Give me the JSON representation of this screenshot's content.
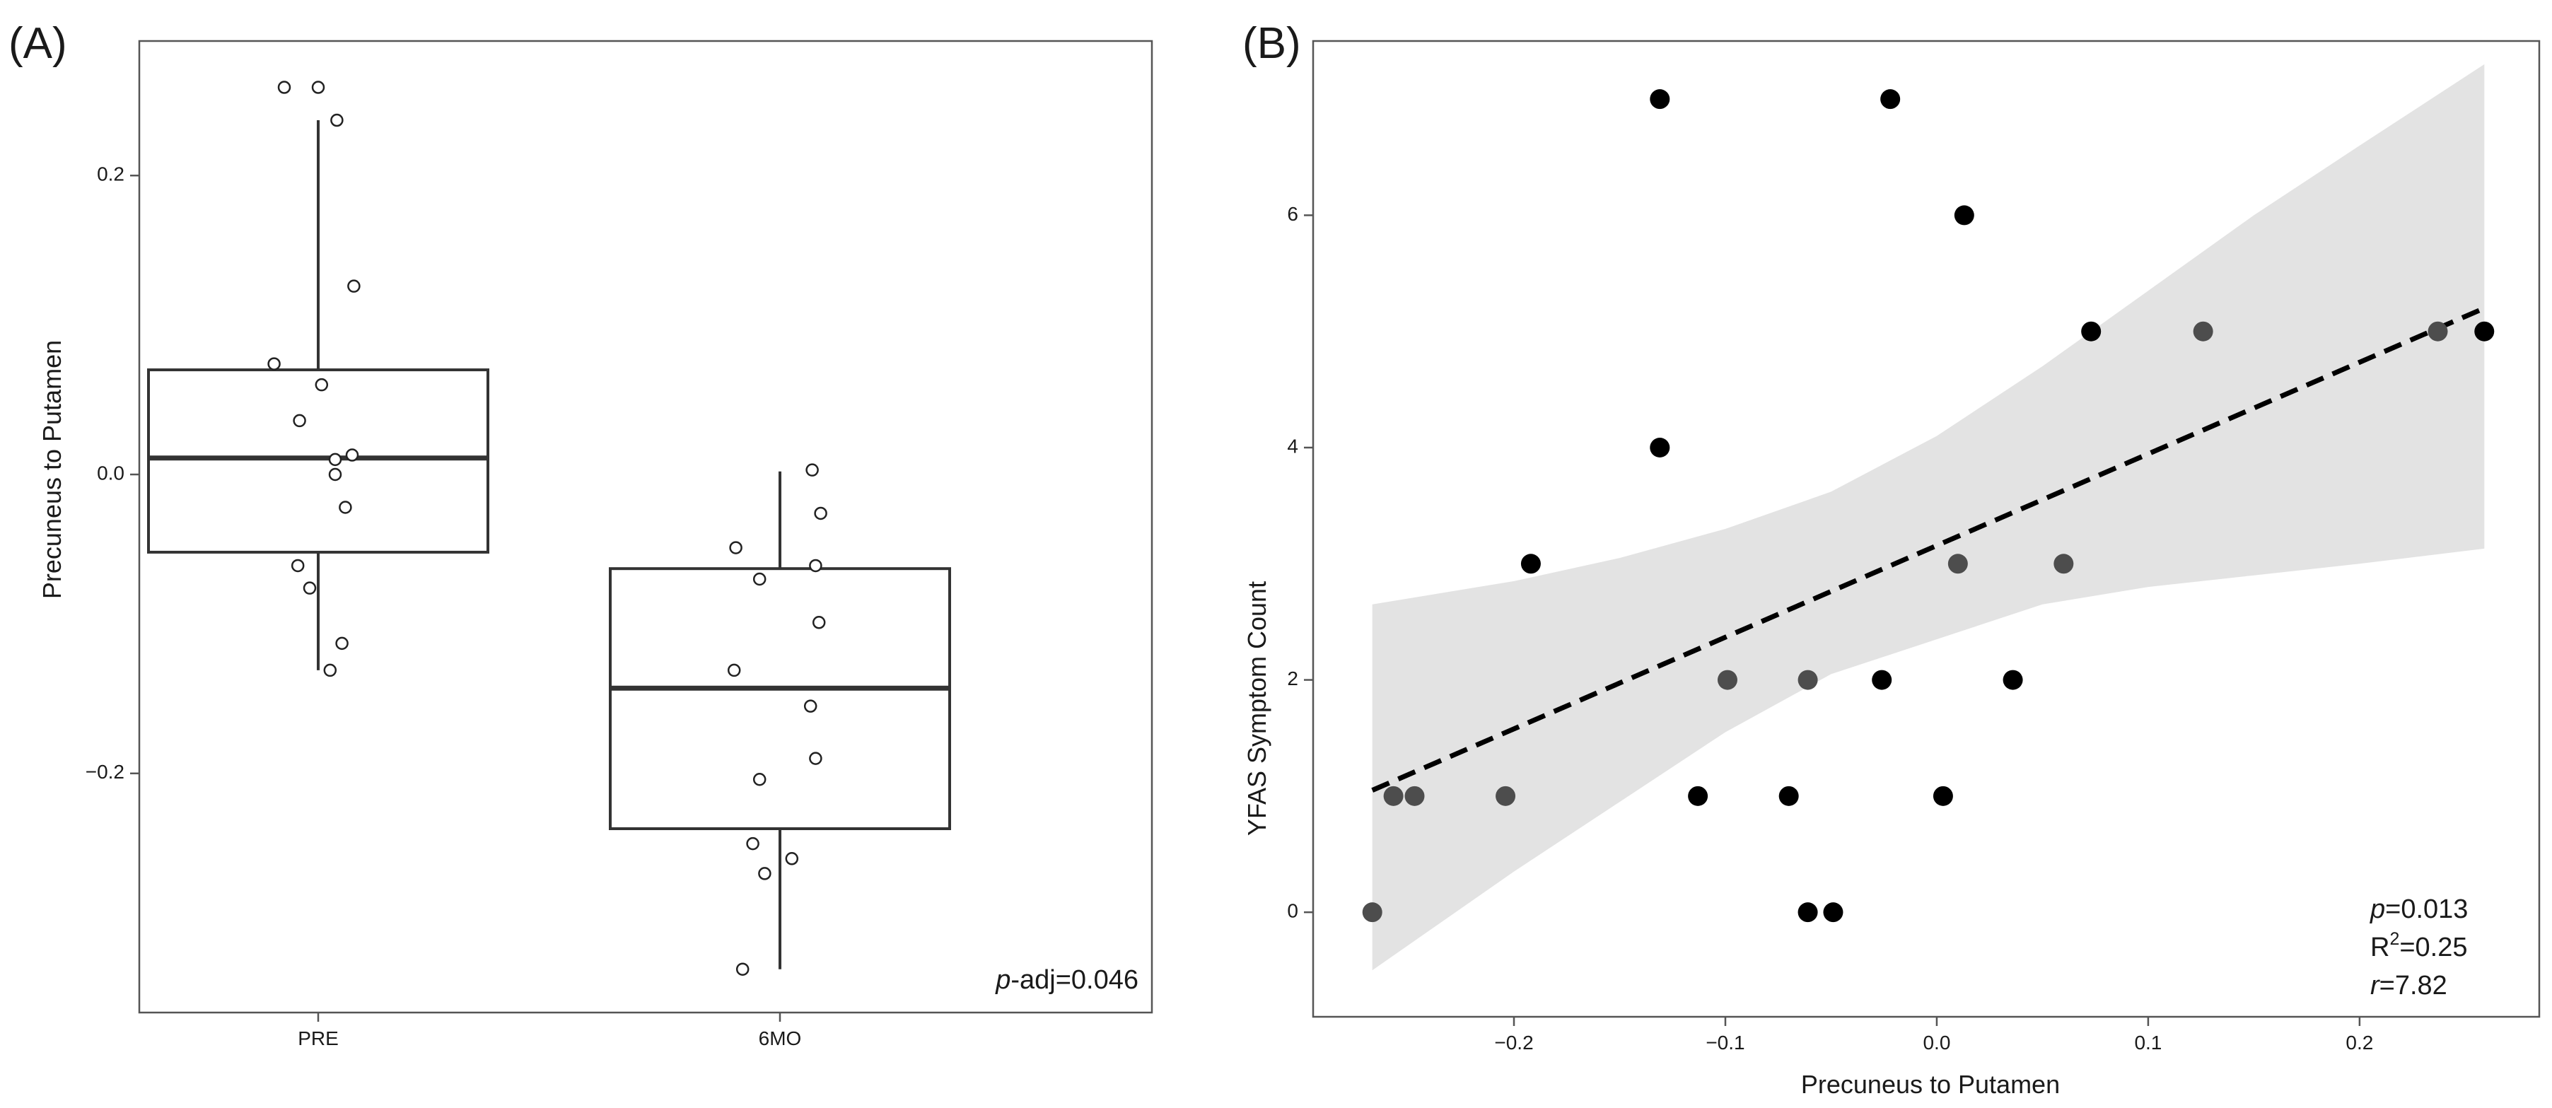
{
  "chart_data": [
    {
      "panel_label": "(A)",
      "type": "box",
      "title": "",
      "xlabel": "",
      "ylabel": "Precuneus to Putamen",
      "ylim": [
        -0.36,
        0.29
      ],
      "yticks": [
        0.2,
        0.0,
        -0.2
      ],
      "ytick_labels": [
        "0.2",
        "0.0",
        "−0.2"
      ],
      "categories": [
        "PRE",
        "6MO"
      ],
      "boxes": [
        {
          "name": "PRE",
          "q1": -0.052,
          "median": 0.011,
          "q3": 0.07,
          "whisker_low": -0.131,
          "whisker_high": 0.237
        },
        {
          "name": "6MO",
          "q1": -0.237,
          "median": -0.143,
          "q3": -0.063,
          "whisker_low": -0.331,
          "whisker_high": 0.002
        }
      ],
      "points": [
        {
          "group": "PRE",
          "jitter": -0.2,
          "y": 0.259
        },
        {
          "group": "PRE",
          "jitter": 0.0,
          "y": 0.259
        },
        {
          "group": "PRE",
          "jitter": 0.11,
          "y": 0.237
        },
        {
          "group": "PRE",
          "jitter": 0.21,
          "y": 0.126
        },
        {
          "group": "PRE",
          "jitter": -0.26,
          "y": 0.074
        },
        {
          "group": "PRE",
          "jitter": 0.02,
          "y": 0.06
        },
        {
          "group": "PRE",
          "jitter": -0.11,
          "y": 0.036
        },
        {
          "group": "PRE",
          "jitter": 0.2,
          "y": 0.013
        },
        {
          "group": "PRE",
          "jitter": 0.1,
          "y": 0.01
        },
        {
          "group": "PRE",
          "jitter": 0.1,
          "y": 0.0
        },
        {
          "group": "PRE",
          "jitter": 0.16,
          "y": -0.022
        },
        {
          "group": "PRE",
          "jitter": -0.12,
          "y": -0.061
        },
        {
          "group": "PRE",
          "jitter": -0.05,
          "y": -0.076
        },
        {
          "group": "PRE",
          "jitter": 0.14,
          "y": -0.113
        },
        {
          "group": "PRE",
          "jitter": 0.07,
          "y": -0.131
        },
        {
          "group": "6MO",
          "jitter": 0.19,
          "y": 0.003
        },
        {
          "group": "6MO",
          "jitter": 0.24,
          "y": -0.026
        },
        {
          "group": "6MO",
          "jitter": -0.26,
          "y": -0.049
        },
        {
          "group": "6MO",
          "jitter": 0.21,
          "y": -0.061
        },
        {
          "group": "6MO",
          "jitter": -0.12,
          "y": -0.07
        },
        {
          "group": "6MO",
          "jitter": 0.23,
          "y": -0.099
        },
        {
          "group": "6MO",
          "jitter": -0.27,
          "y": -0.131
        },
        {
          "group": "6MO",
          "jitter": 0.18,
          "y": -0.155
        },
        {
          "group": "6MO",
          "jitter": 0.21,
          "y": -0.19
        },
        {
          "group": "6MO",
          "jitter": -0.12,
          "y": -0.204
        },
        {
          "group": "6MO",
          "jitter": -0.16,
          "y": -0.247
        },
        {
          "group": "6MO",
          "jitter": 0.07,
          "y": -0.257
        },
        {
          "group": "6MO",
          "jitter": -0.09,
          "y": -0.267
        },
        {
          "group": "6MO",
          "jitter": -0.22,
          "y": -0.331
        }
      ],
      "annotation_italic": "p",
      "annotation_text": "-adj=0.046"
    },
    {
      "panel_label": "(B)",
      "type": "scatter",
      "title": "",
      "xlabel": "Precuneus to Putamen",
      "ylabel": "YFAS Symptom Count",
      "xlim": [
        -0.295,
        0.285
      ],
      "ylim": [
        -0.9,
        7.5
      ],
      "xticks": [
        -0.2,
        -0.1,
        0.0,
        0.1,
        0.2
      ],
      "xtick_labels": [
        "−0.2",
        "−0.1",
        "0.0",
        "0.1",
        "0.2"
      ],
      "yticks": [
        0,
        2,
        4,
        6
      ],
      "ytick_labels": [
        "0",
        "2",
        "4",
        "6"
      ],
      "point_colors": {
        "dark": "#000000",
        "gray": "#4d4d4d"
      },
      "points": [
        {
          "x": -0.131,
          "y": 7,
          "shade": "dark"
        },
        {
          "x": -0.022,
          "y": 7,
          "shade": "dark"
        },
        {
          "x": 0.013,
          "y": 6,
          "shade": "dark"
        },
        {
          "x": 0.073,
          "y": 5,
          "shade": "dark"
        },
        {
          "x": 0.126,
          "y": 5,
          "shade": "gray"
        },
        {
          "x": 0.237,
          "y": 5,
          "shade": "gray"
        },
        {
          "x": 0.259,
          "y": 5,
          "shade": "dark"
        },
        {
          "x": -0.131,
          "y": 4,
          "shade": "dark"
        },
        {
          "x": -0.192,
          "y": 3,
          "shade": "dark"
        },
        {
          "x": 0.01,
          "y": 3,
          "shade": "gray"
        },
        {
          "x": 0.06,
          "y": 3,
          "shade": "gray"
        },
        {
          "x": -0.099,
          "y": 2,
          "shade": "gray"
        },
        {
          "x": -0.061,
          "y": 2,
          "shade": "gray"
        },
        {
          "x": -0.026,
          "y": 2,
          "shade": "dark"
        },
        {
          "x": 0.036,
          "y": 2,
          "shade": "dark"
        },
        {
          "x": -0.257,
          "y": 1,
          "shade": "gray"
        },
        {
          "x": -0.247,
          "y": 1,
          "shade": "gray"
        },
        {
          "x": -0.204,
          "y": 1,
          "shade": "gray"
        },
        {
          "x": -0.113,
          "y": 1,
          "shade": "dark"
        },
        {
          "x": -0.07,
          "y": 1,
          "shade": "dark"
        },
        {
          "x": 0.003,
          "y": 1,
          "shade": "dark"
        },
        {
          "x": -0.267,
          "y": 0,
          "shade": "gray"
        },
        {
          "x": -0.061,
          "y": 0,
          "shade": "dark"
        },
        {
          "x": -0.049,
          "y": 0,
          "shade": "dark"
        }
      ],
      "regression": {
        "x_start": -0.267,
        "y_start": 1.05,
        "x_end": 0.259,
        "y_end": 5.2
      },
      "confidence_band": {
        "color": "#e3e3e3",
        "x": [
          -0.267,
          -0.2,
          -0.15,
          -0.1,
          -0.05,
          0.0,
          0.05,
          0.1,
          0.15,
          0.2,
          0.259
        ],
        "upper": [
          2.65,
          2.85,
          3.05,
          3.3,
          3.62,
          4.1,
          4.7,
          5.35,
          6.0,
          6.6,
          7.3
        ],
        "lower": [
          -0.5,
          0.35,
          0.95,
          1.55,
          2.05,
          2.35,
          2.65,
          2.8,
          2.9,
          3.0,
          3.13
        ]
      },
      "stats": {
        "p_label": "p",
        "p_value": "=0.013",
        "r2_base": "R",
        "r2_sup": "2",
        "r2_value": "=0.25",
        "r_label": "r",
        "r_value": "=7.82"
      }
    }
  ]
}
